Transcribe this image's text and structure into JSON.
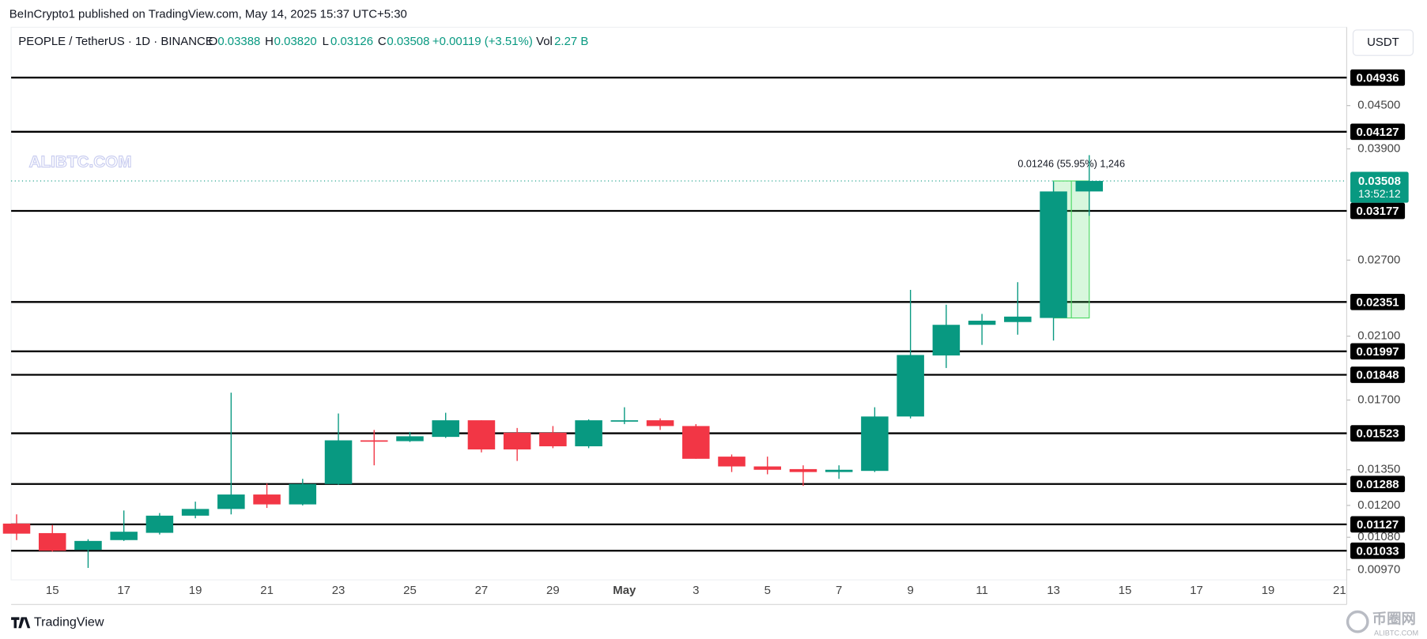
{
  "published": "BeInCrypto1 published on TradingView.com, May 14, 2025 15:37 UTC+5:30",
  "symbol": "PEOPLE / TetherUS · 1D · BINANCE",
  "legend": {
    "o": "O",
    "o_value": "0.03388",
    "h": "H",
    "h_value": "0.03820",
    "l": "L",
    "l_value": "0.03126",
    "c": "C",
    "c_value": "0.03508",
    "change": "+0.00119 (+3.51%)",
    "vol": "Vol",
    "vol_value": "2.27 B"
  },
  "currency": "USDT",
  "watermark": "ALIBTC.COM",
  "logo": "TradingView",
  "corner_logo": {
    "name": "币圈网",
    "site": "ALIBTC.COM"
  },
  "chart_data": {
    "type": "candlestick",
    "categories": [
      null,
      "15",
      null,
      "17",
      null,
      "19",
      null,
      "21",
      null,
      "23",
      null,
      "25",
      null,
      "27",
      null,
      "29",
      null,
      "May",
      null,
      "3",
      null,
      "5",
      null,
      "7",
      null,
      "9",
      null,
      "11",
      null,
      "13",
      null,
      "15",
      null,
      "17",
      null,
      "19",
      null,
      "21"
    ],
    "open": [
      0.0113,
      0.01095,
      0.01036,
      0.0107,
      0.01096,
      0.0116,
      0.01186,
      0.01244,
      0.01204,
      0.01288,
      0.01488,
      0.01484,
      0.01505,
      0.0159,
      0.01526,
      0.01526,
      0.01459,
      0.01585,
      0.0159,
      0.0156,
      0.0141,
      0.01365,
      0.01353,
      0.0134,
      0.01345,
      0.0161,
      0.0197,
      0.0218,
      0.022,
      0.0223,
      0.03388,
      null,
      null,
      null,
      null,
      null,
      null,
      null
    ],
    "high": [
      0.01165,
      0.01125,
      0.01073,
      0.0118,
      0.0117,
      0.01215,
      0.01742,
      0.0129,
      0.0131,
      0.01626,
      0.0154,
      0.0153,
      0.0163,
      0.0159,
      0.0155,
      0.0156,
      0.01595,
      0.0166,
      0.016,
      0.0157,
      0.0142,
      0.0141,
      0.0137,
      0.0137,
      0.0166,
      0.02447,
      0.0233,
      0.0226,
      0.0251,
      0.035,
      0.0382,
      null,
      null,
      null,
      null,
      null,
      null,
      null
    ],
    "low": [
      0.0107,
      0.0103,
      0.00976,
      0.01067,
      0.0109,
      0.0115,
      0.01165,
      0.0119,
      0.012,
      0.01284,
      0.0137,
      0.0148,
      0.015,
      0.0143,
      0.0139,
      0.0145,
      0.0145,
      0.0157,
      0.0154,
      0.014,
      0.0134,
      0.0133,
      0.0128,
      0.0131,
      0.0134,
      0.016,
      0.0189,
      0.0204,
      0.0211,
      0.0207,
      0.03126,
      null,
      null,
      null,
      null,
      null,
      null,
      null
    ],
    "close": [
      0.01093,
      0.01033,
      0.01067,
      0.011,
      0.0116,
      0.01186,
      0.01244,
      0.01204,
      0.01288,
      0.01488,
      0.01484,
      0.01508,
      0.0159,
      0.01444,
      0.01444,
      0.01459,
      0.0159,
      0.0159,
      0.0156,
      0.014,
      0.01365,
      0.0135,
      0.0134,
      0.0135,
      0.0161,
      0.01973,
      0.0218,
      0.0221,
      0.0224,
      0.03388,
      0.03508,
      null,
      null,
      null,
      null,
      null,
      null,
      null
    ],
    "up_color": "#089981",
    "down_color": "#f23645",
    "log_scale": true,
    "ylim": [
      0.00938,
      0.0583
    ],
    "yticks": [
      {
        "value": 0.045,
        "label": "0.04500"
      },
      {
        "value": 0.039,
        "label": "0.03900"
      },
      {
        "value": 0.027,
        "label": "0.02700"
      },
      {
        "value": 0.021,
        "label": "0.02100"
      },
      {
        "value": 0.017,
        "label": "0.01700"
      },
      {
        "value": 0.0135,
        "label": "0.01350"
      },
      {
        "value": 0.012,
        "label": "0.01200"
      },
      {
        "value": 0.0108,
        "label": "0.01080"
      },
      {
        "value": 0.0097,
        "label": "0.00970"
      }
    ],
    "levels": [
      0.04936,
      0.04127,
      0.03177,
      0.02351,
      0.01997,
      0.01848,
      0.01523,
      0.01288,
      0.01127,
      0.01033
    ],
    "level_color": "#000000",
    "last_price": 0.03508,
    "countdown": "13:52:12",
    "measure_label": "0.01246 (55.95%) 1,246"
  }
}
